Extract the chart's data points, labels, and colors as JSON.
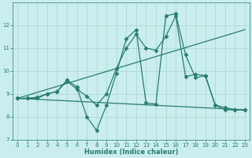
{
  "xlabel": "Humidex (Indice chaleur)",
  "xlim": [
    -0.5,
    23.5
  ],
  "ylim": [
    7,
    13
  ],
  "yticks": [
    7,
    8,
    9,
    10,
    11,
    12
  ],
  "xticks": [
    0,
    1,
    2,
    3,
    4,
    5,
    6,
    7,
    8,
    9,
    10,
    11,
    12,
    13,
    14,
    15,
    16,
    17,
    18,
    19,
    20,
    21,
    22,
    23
  ],
  "bg_color": "#caeeed",
  "line_color": "#2a7d6e",
  "grid_color": "#a8d5d0",
  "lines": [
    {
      "x": [
        0,
        1,
        2,
        3,
        4,
        5,
        6,
        7,
        8,
        9,
        10,
        11,
        12,
        13,
        14,
        15,
        16,
        17,
        18,
        19,
        20,
        21,
        22,
        23
      ],
      "y": [
        8.8,
        8.8,
        8.8,
        9.0,
        9.1,
        9.6,
        9.3,
        8.0,
        7.4,
        8.5,
        9.9,
        11.4,
        11.8,
        8.6,
        8.55,
        12.4,
        12.5,
        10.7,
        9.7,
        9.8,
        8.5,
        8.3,
        8.3,
        8.3
      ],
      "marker": "D",
      "markersize": 2.5,
      "linewidth": 0.9
    },
    {
      "x": [
        0,
        23
      ],
      "y": [
        8.8,
        11.8
      ],
      "marker": null,
      "markersize": 0,
      "linewidth": 0.9
    },
    {
      "x": [
        0,
        23
      ],
      "y": [
        8.8,
        8.3
      ],
      "marker": null,
      "markersize": 0,
      "linewidth": 0.9
    },
    {
      "x": [
        0,
        1,
        2,
        3,
        4,
        5,
        6,
        7,
        8,
        9,
        10,
        11,
        12,
        13,
        14,
        15,
        16,
        17,
        18,
        19,
        20,
        21,
        22,
        23
      ],
      "y": [
        8.8,
        8.8,
        8.85,
        9.0,
        9.1,
        9.55,
        9.2,
        8.9,
        8.5,
        9.0,
        10.1,
        11.0,
        11.6,
        11.0,
        10.9,
        11.5,
        12.4,
        9.75,
        9.85,
        9.8,
        8.5,
        8.4,
        8.3,
        8.3
      ],
      "marker": "D",
      "markersize": 2.5,
      "linewidth": 0.9
    }
  ]
}
